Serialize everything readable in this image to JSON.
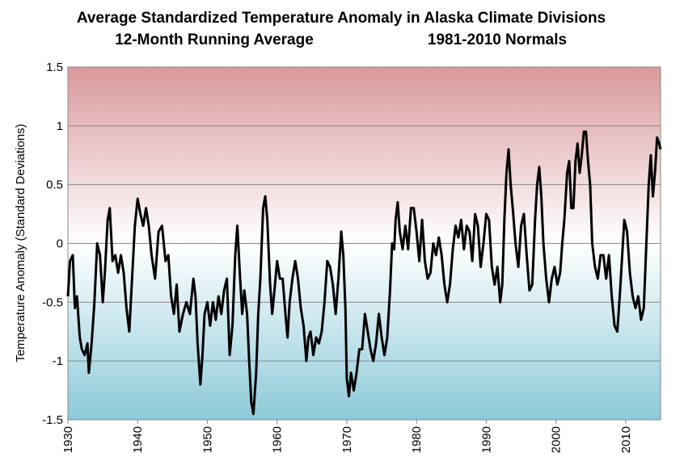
{
  "chart_data": {
    "type": "line",
    "title": "Average Standardized Temperature Anomaly in Alaska Climate Divisions",
    "subtitle": "12-Month Running Average",
    "annotation": "1981-2010 Normals",
    "y_label": "Temperature Anomaly (Standard Deviations)",
    "color": "#000000",
    "grid": true,
    "xlim": [
      1930,
      2015
    ],
    "xticks": [
      1930,
      1940,
      1950,
      1960,
      1970,
      1980,
      1990,
      2000,
      2010
    ],
    "ylim": [
      -1.5,
      1.5
    ],
    "yticks": [
      -1.5,
      -1,
      -0.5,
      0,
      0.5,
      1,
      1.5
    ],
    "x": [
      1930,
      1930.3,
      1930.7,
      1931.0,
      1931.3,
      1931.7,
      1932.0,
      1932.4,
      1932.8,
      1933.0,
      1933.4,
      1933.8,
      1934.2,
      1934.6,
      1935.0,
      1935.3,
      1935.7,
      1936.0,
      1936.4,
      1936.8,
      1937.2,
      1937.6,
      1938.0,
      1938.4,
      1938.8,
      1939.2,
      1939.6,
      1940.0,
      1940.4,
      1940.8,
      1941.2,
      1941.6,
      1942.0,
      1942.5,
      1943.0,
      1943.5,
      1944.0,
      1944.4,
      1944.8,
      1945.2,
      1945.6,
      1946.0,
      1946.5,
      1947.0,
      1947.5,
      1948.0,
      1948.3,
      1948.6,
      1949.0,
      1949.3,
      1949.6,
      1950.0,
      1950.4,
      1950.8,
      1951.2,
      1951.6,
      1952.0,
      1952.4,
      1952.8,
      1953.2,
      1953.6,
      1954.0,
      1954.3,
      1954.7,
      1955.0,
      1955.3,
      1955.7,
      1956.0,
      1956.3,
      1956.6,
      1957.0,
      1957.3,
      1957.6,
      1958.0,
      1958.3,
      1958.6,
      1959.0,
      1959.3,
      1959.7,
      1960.0,
      1960.4,
      1960.8,
      1961.2,
      1961.5,
      1961.8,
      1962.2,
      1962.6,
      1963.0,
      1963.4,
      1963.8,
      1964.2,
      1964.5,
      1964.8,
      1965.2,
      1965.6,
      1966.0,
      1966.4,
      1966.8,
      1967.2,
      1967.6,
      1968.0,
      1968.4,
      1968.8,
      1969.2,
      1969.5,
      1969.8,
      1970.0,
      1970.3,
      1970.6,
      1971.0,
      1971.4,
      1971.8,
      1972.2,
      1972.6,
      1973.0,
      1973.4,
      1973.8,
      1974.2,
      1974.6,
      1975.0,
      1975.4,
      1975.8,
      1976.2,
      1976.5,
      1976.8,
      1977.0,
      1977.3,
      1977.6,
      1978.0,
      1978.4,
      1978.8,
      1979.2,
      1979.6,
      1980.0,
      1980.4,
      1980.8,
      1981.2,
      1981.6,
      1982.0,
      1982.4,
      1982.8,
      1983.2,
      1983.6,
      1984.0,
      1984.4,
      1984.8,
      1985.2,
      1985.6,
      1986.0,
      1986.4,
      1986.8,
      1987.2,
      1987.6,
      1988.0,
      1988.4,
      1988.8,
      1989.2,
      1989.6,
      1990.0,
      1990.4,
      1990.8,
      1991.2,
      1991.6,
      1992.0,
      1992.3,
      1992.6,
      1992.9,
      1993.2,
      1993.5,
      1993.8,
      1994.2,
      1994.6,
      1995.0,
      1995.4,
      1995.8,
      1996.2,
      1996.6,
      1997.0,
      1997.3,
      1997.6,
      1997.9,
      1998.2,
      1998.6,
      1999.0,
      1999.4,
      1999.8,
      2000.2,
      2000.6,
      2000.9,
      2001.2,
      2001.6,
      2001.9,
      2002.2,
      2002.5,
      2002.8,
      2003.1,
      2003.4,
      2003.7,
      2004.0,
      2004.3,
      2004.6,
      2004.9,
      2005.2,
      2005.6,
      2006.0,
      2006.4,
      2006.8,
      2007.2,
      2007.6,
      2008.0,
      2008.4,
      2008.8,
      2009.2,
      2009.5,
      2009.8,
      2010.2,
      2010.6,
      2011.0,
      2011.4,
      2011.8,
      2012.2,
      2012.6,
      2013.0,
      2013.3,
      2013.6,
      2013.9,
      2014.2,
      2014.5,
      2014.8,
      2015.0
    ],
    "values": [
      -0.45,
      -0.15,
      -0.1,
      -0.55,
      -0.45,
      -0.8,
      -0.9,
      -0.95,
      -0.85,
      -1.1,
      -0.85,
      -0.5,
      0.0,
      -0.1,
      -0.5,
      -0.25,
      0.2,
      0.3,
      -0.15,
      -0.1,
      -0.25,
      -0.1,
      -0.25,
      -0.55,
      -0.75,
      -0.3,
      0.15,
      0.38,
      0.25,
      0.15,
      0.3,
      0.15,
      -0.1,
      -0.3,
      0.1,
      0.15,
      -0.15,
      -0.1,
      -0.45,
      -0.6,
      -0.35,
      -0.75,
      -0.6,
      -0.5,
      -0.6,
      -0.3,
      -0.45,
      -0.85,
      -1.2,
      -0.95,
      -0.6,
      -0.5,
      -0.7,
      -0.5,
      -0.65,
      -0.45,
      -0.6,
      -0.4,
      -0.3,
      -0.95,
      -0.7,
      -0.1,
      0.15,
      -0.3,
      -0.6,
      -0.4,
      -0.6,
      -1.0,
      -1.35,
      -1.45,
      -1.1,
      -0.6,
      -0.3,
      0.3,
      0.4,
      0.2,
      -0.35,
      -0.6,
      -0.35,
      -0.15,
      -0.3,
      -0.3,
      -0.6,
      -0.8,
      -0.5,
      -0.3,
      -0.15,
      -0.3,
      -0.55,
      -0.7,
      -1.0,
      -0.8,
      -0.75,
      -0.95,
      -0.8,
      -0.85,
      -0.75,
      -0.5,
      -0.15,
      -0.2,
      -0.35,
      -0.6,
      -0.3,
      0.1,
      -0.1,
      -0.55,
      -1.15,
      -1.3,
      -1.1,
      -1.25,
      -1.1,
      -0.9,
      -0.9,
      -0.6,
      -0.75,
      -0.9,
      -1.0,
      -0.85,
      -0.6,
      -0.8,
      -0.95,
      -0.8,
      -0.4,
      0.0,
      -0.05,
      0.2,
      0.35,
      0.1,
      -0.05,
      0.15,
      -0.05,
      0.3,
      0.3,
      0.1,
      -0.15,
      0.2,
      -0.15,
      -0.3,
      -0.25,
      0.0,
      -0.1,
      0.05,
      -0.1,
      -0.35,
      -0.5,
      -0.35,
      -0.05,
      0.15,
      0.05,
      0.2,
      -0.05,
      0.15,
      0.1,
      -0.15,
      0.25,
      0.15,
      -0.2,
      0.0,
      0.25,
      0.2,
      -0.2,
      -0.35,
      -0.2,
      -0.5,
      -0.35,
      0.2,
      0.6,
      0.8,
      0.5,
      0.3,
      0.0,
      -0.2,
      0.15,
      0.25,
      -0.1,
      -0.4,
      -0.35,
      0.2,
      0.5,
      0.65,
      0.4,
      0.0,
      -0.3,
      -0.5,
      -0.3,
      -0.2,
      -0.35,
      -0.25,
      0.0,
      0.2,
      0.6,
      0.7,
      0.3,
      0.3,
      0.7,
      0.85,
      0.6,
      0.75,
      0.95,
      0.95,
      0.7,
      0.5,
      0.0,
      -0.2,
      -0.3,
      -0.1,
      -0.1,
      -0.3,
      -0.1,
      -0.45,
      -0.7,
      -0.75,
      -0.4,
      -0.1,
      0.2,
      0.1,
      -0.25,
      -0.45,
      -0.55,
      -0.45,
      -0.65,
      -0.55,
      0.05,
      0.5,
      0.75,
      0.4,
      0.6,
      0.9,
      0.85,
      0.8
    ]
  }
}
